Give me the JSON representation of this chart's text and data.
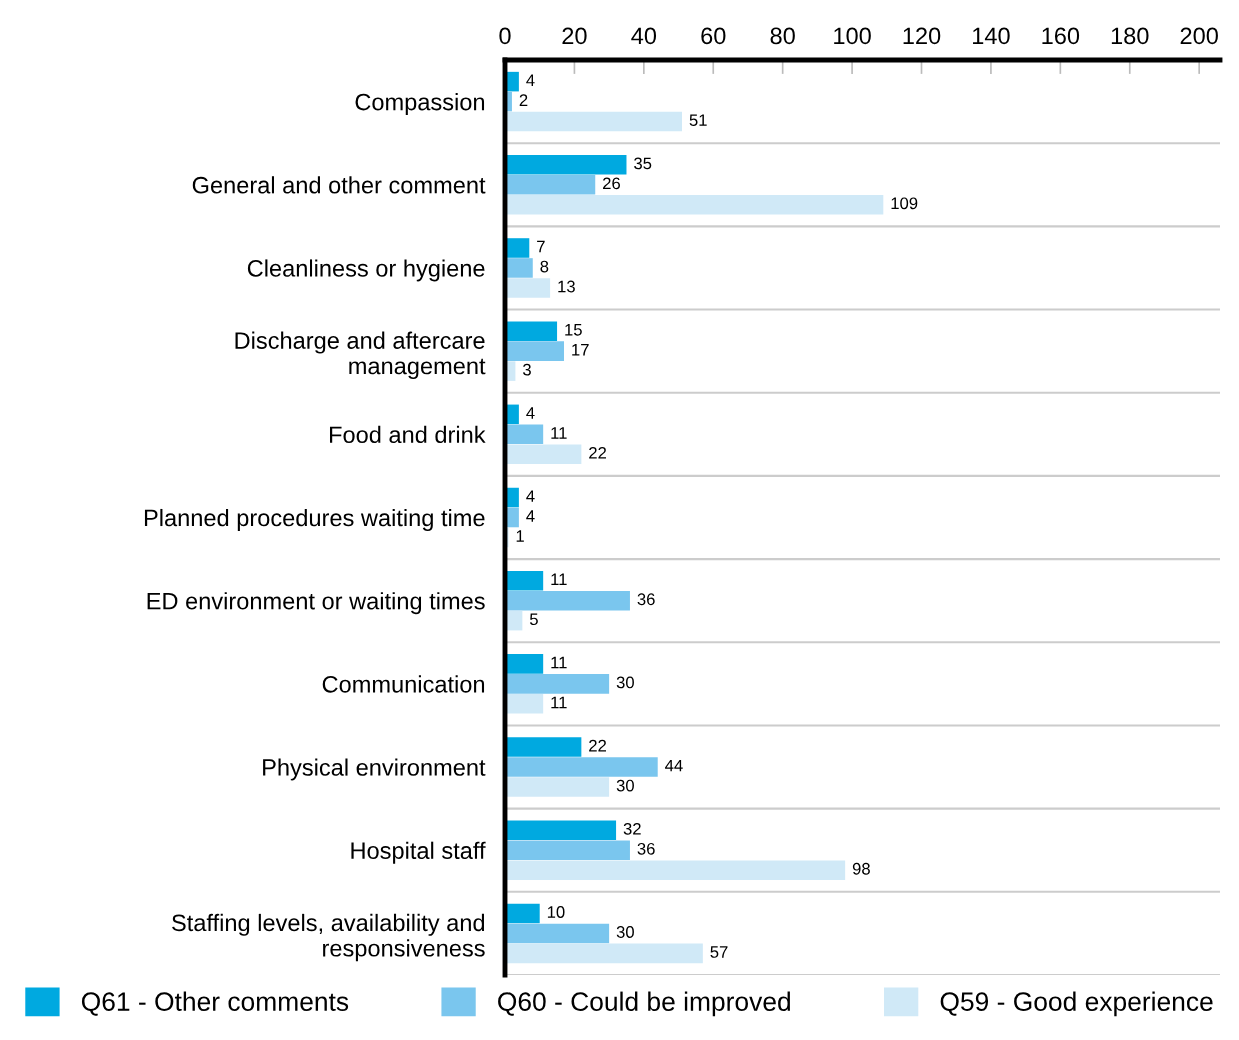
{
  "chart_data": {
    "type": "bar",
    "orientation": "horizontal",
    "categories": [
      "Compassion",
      "General and other comment",
      "Cleanliness or hygiene",
      "Discharge and aftercare\nmanagement",
      "Food and drink",
      "Planned procedures waiting time",
      "ED environment or waiting times",
      "Communication",
      "Physical environment",
      "Hospital staff",
      "Staffing levels, availability and\nresponsiveness"
    ],
    "series": [
      {
        "name": "Q61 - Other comments",
        "color": "#00a9e0",
        "values": [
          4,
          35,
          7,
          15,
          4,
          4,
          11,
          11,
          22,
          32,
          10
        ]
      },
      {
        "name": "Q60 - Could be improved",
        "color": "#7ac6ee",
        "values": [
          2,
          26,
          8,
          17,
          11,
          4,
          36,
          30,
          44,
          36,
          30
        ]
      },
      {
        "name": "Q59 - Good experience",
        "color": "#d0e9f7",
        "values": [
          51,
          109,
          13,
          3,
          22,
          1,
          5,
          11,
          30,
          98,
          57
        ]
      }
    ],
    "xlim": [
      0,
      206
    ],
    "xticks": [
      0,
      20,
      40,
      60,
      80,
      100,
      120,
      140,
      160,
      180,
      200
    ],
    "data_labels": true,
    "grid": false,
    "legend": "bottom"
  }
}
